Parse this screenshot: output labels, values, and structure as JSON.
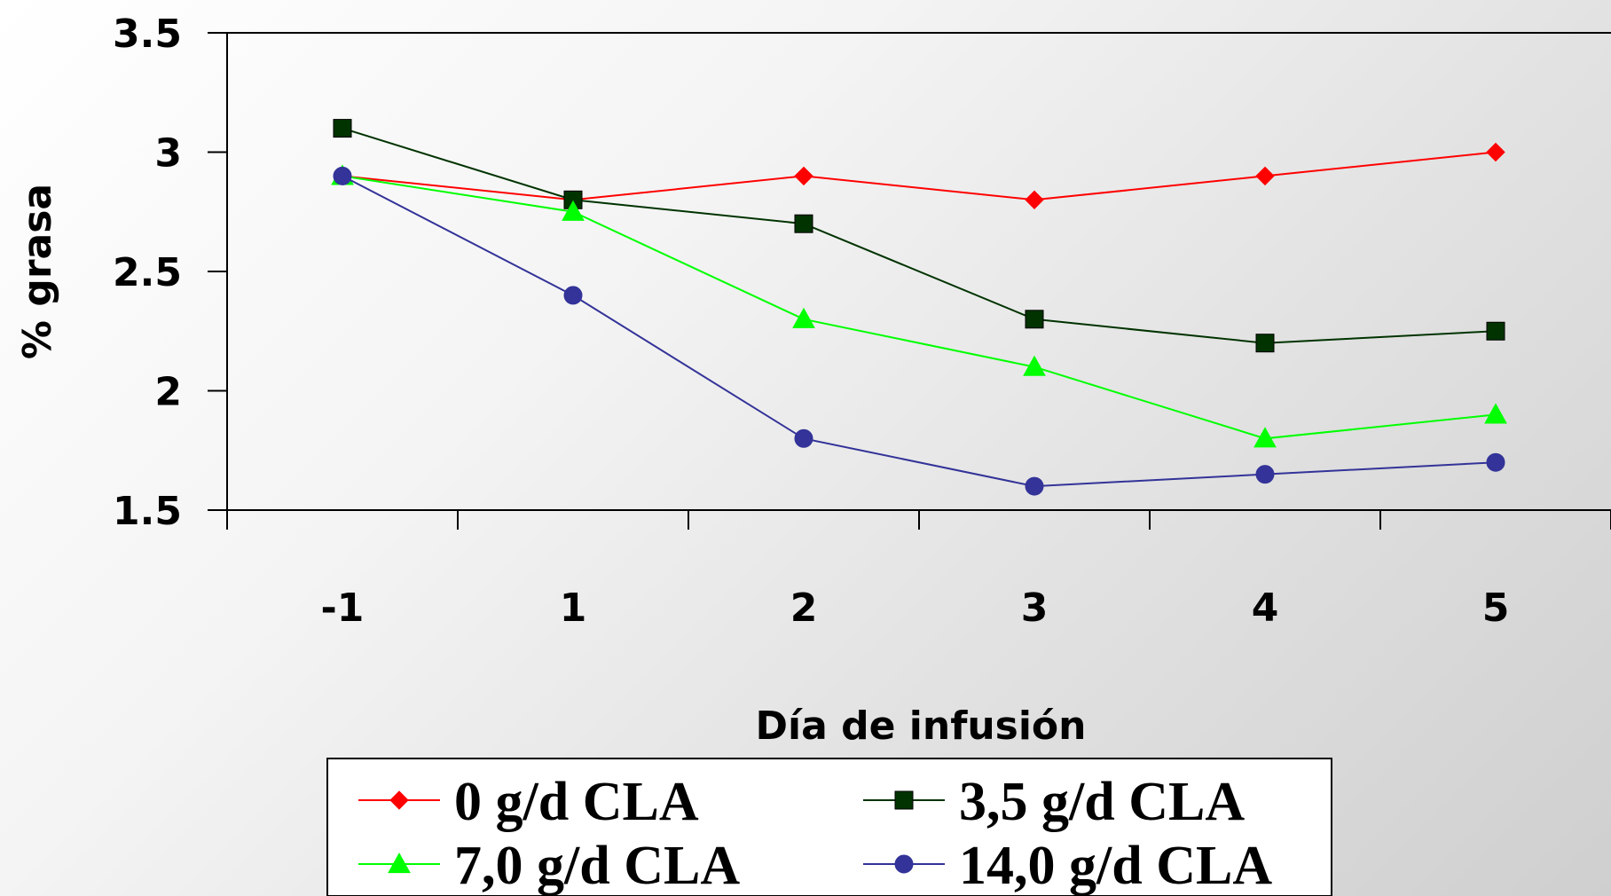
{
  "chart_data": {
    "type": "line",
    "xlabel": "Día de infusión",
    "ylabel": "% grasa",
    "categories": [
      "-1",
      "1",
      "2",
      "3",
      "4",
      "5"
    ],
    "ylim": [
      1.5,
      3.5
    ],
    "yticks": [
      "3.5",
      "3",
      "2.5",
      "2",
      "1.5"
    ],
    "grid": false,
    "legend_position": "bottom",
    "series": [
      {
        "name": "0 g/d CLA",
        "color": "#ff0000",
        "marker": "diamond",
        "values": [
          2.9,
          2.8,
          2.9,
          2.8,
          2.9,
          3.0
        ]
      },
      {
        "name": "3,5 g/d CLA",
        "color": "#003300",
        "marker": "square",
        "values": [
          3.1,
          2.8,
          2.7,
          2.3,
          2.2,
          2.25
        ]
      },
      {
        "name": "7,0 g/d CLA",
        "color": "#00ff00",
        "marker": "triangle",
        "values": [
          2.9,
          2.75,
          2.3,
          2.1,
          1.8,
          1.9
        ]
      },
      {
        "name": "14,0 g/d CLA",
        "color": "#333399",
        "marker": "circle",
        "values": [
          2.9,
          2.4,
          1.8,
          1.6,
          1.65,
          1.7
        ]
      }
    ]
  }
}
